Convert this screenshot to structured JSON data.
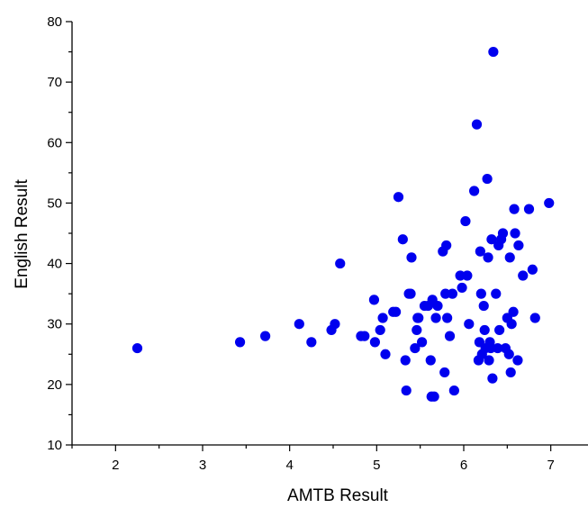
{
  "chart_data": {
    "type": "scatter",
    "xlabel": "AMTB Result",
    "ylabel": "English Result",
    "xlim": [
      1.5,
      7.5
    ],
    "ylim": [
      10,
      80
    ],
    "xticks": [
      2,
      3,
      4,
      5,
      6,
      7
    ],
    "yticks": [
      10,
      20,
      30,
      40,
      50,
      60,
      70,
      80
    ],
    "grid": false,
    "point_color": "#0000ee",
    "points": [
      [
        2.25,
        26
      ],
      [
        3.43,
        27
      ],
      [
        3.72,
        28
      ],
      [
        4.11,
        30
      ],
      [
        4.25,
        27
      ],
      [
        4.48,
        29
      ],
      [
        4.52,
        30
      ],
      [
        4.58,
        40
      ],
      [
        4.82,
        28
      ],
      [
        4.86,
        28
      ],
      [
        4.97,
        34
      ],
      [
        4.98,
        27
      ],
      [
        5.04,
        29
      ],
      [
        5.07,
        31
      ],
      [
        5.1,
        25
      ],
      [
        5.19,
        32
      ],
      [
        5.22,
        32
      ],
      [
        5.25,
        51
      ],
      [
        5.3,
        44
      ],
      [
        5.33,
        24
      ],
      [
        5.34,
        19
      ],
      [
        5.37,
        35
      ],
      [
        5.39,
        35
      ],
      [
        5.4,
        41
      ],
      [
        5.44,
        26
      ],
      [
        5.46,
        29
      ],
      [
        5.47,
        31
      ],
      [
        5.48,
        31
      ],
      [
        5.52,
        27
      ],
      [
        5.55,
        33
      ],
      [
        5.59,
        33
      ],
      [
        5.62,
        24
      ],
      [
        5.63,
        18
      ],
      [
        5.64,
        34
      ],
      [
        5.66,
        18
      ],
      [
        5.68,
        31
      ],
      [
        5.7,
        33
      ],
      [
        5.76,
        42
      ],
      [
        5.78,
        22
      ],
      [
        5.79,
        35
      ],
      [
        5.8,
        43
      ],
      [
        5.81,
        31
      ],
      [
        5.84,
        28
      ],
      [
        5.87,
        35
      ],
      [
        5.89,
        19
      ],
      [
        5.96,
        38
      ],
      [
        5.98,
        36
      ],
      [
        6.02,
        47
      ],
      [
        6.04,
        38
      ],
      [
        6.06,
        30
      ],
      [
        6.12,
        52
      ],
      [
        6.15,
        63
      ],
      [
        6.17,
        24
      ],
      [
        6.18,
        27
      ],
      [
        6.19,
        42
      ],
      [
        6.2,
        35
      ],
      [
        6.21,
        25
      ],
      [
        6.23,
        33
      ],
      [
        6.24,
        29
      ],
      [
        6.25,
        26
      ],
      [
        6.27,
        54
      ],
      [
        6.28,
        41
      ],
      [
        6.29,
        24
      ],
      [
        6.3,
        27
      ],
      [
        6.31,
        26
      ],
      [
        6.32,
        44
      ],
      [
        6.33,
        21
      ],
      [
        6.34,
        75
      ],
      [
        6.37,
        35
      ],
      [
        6.39,
        26
      ],
      [
        6.4,
        43
      ],
      [
        6.41,
        29
      ],
      [
        6.43,
        44
      ],
      [
        6.45,
        45
      ],
      [
        6.48,
        26
      ],
      [
        6.5,
        31
      ],
      [
        6.52,
        25
      ],
      [
        6.53,
        41
      ],
      [
        6.54,
        22
      ],
      [
        6.55,
        30
      ],
      [
        6.57,
        32
      ],
      [
        6.58,
        49
      ],
      [
        6.59,
        45
      ],
      [
        6.62,
        24
      ],
      [
        6.63,
        43
      ],
      [
        6.68,
        38
      ],
      [
        6.75,
        49
      ],
      [
        6.79,
        39
      ],
      [
        6.82,
        31
      ],
      [
        6.98,
        50
      ]
    ]
  }
}
